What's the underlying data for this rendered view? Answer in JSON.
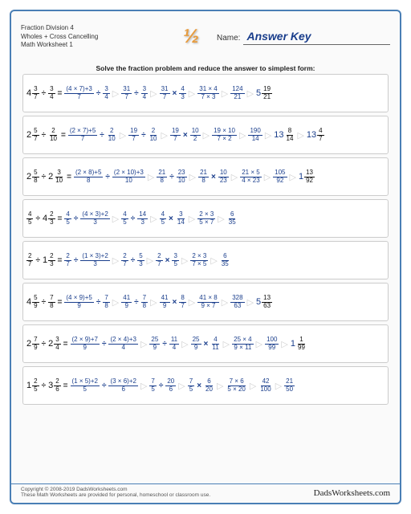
{
  "header": {
    "title1": "Fraction Division 4",
    "title2": "Wholes + Cross Cancelling",
    "title3": "Math Worksheet 1",
    "logo": "½",
    "name_label": "Name:",
    "name_value": "Answer Key"
  },
  "instruction": "Solve the fraction problem and reduce the answer to simplest form:",
  "colors": {
    "border": "#4a7fb5",
    "answer_blue": "#1a3e8c",
    "logo_orange": "#e89b3c",
    "arrow_gray": "#d0d0d0"
  },
  "problems": [
    {
      "lhs": {
        "w": "4",
        "n": "3",
        "d": "7"
      },
      "op": "÷",
      "rhs": {
        "n": "3",
        "d": "4"
      },
      "steps": [
        {
          "n": "(4 × 7)+3",
          "d": "7",
          "op": "÷",
          "n2": "3",
          "d2": "4"
        },
        {
          "n": "31",
          "d": "7",
          "op": "÷",
          "n2": "3",
          "d2": "4"
        },
        {
          "n": "31",
          "d": "7",
          "op": "×",
          "n2": "4",
          "d2": "3"
        },
        {
          "n": "31 × 4",
          "d": "7 × 3"
        },
        {
          "n": "124",
          "d": "21"
        }
      ],
      "result": {
        "w": "5",
        "n": "19",
        "d": "21"
      }
    },
    {
      "lhs": {
        "w": "2",
        "n": "5",
        "d": "7"
      },
      "op": "÷",
      "rhs": {
        "n": "2",
        "d": "10"
      },
      "steps": [
        {
          "n": "(2 × 7)+5",
          "d": "7",
          "op": "÷",
          "n2": "2",
          "d2": "10"
        },
        {
          "n": "19",
          "d": "7",
          "op": "÷",
          "n2": "2",
          "d2": "10"
        },
        {
          "n": "19",
          "d": "7",
          "op": "×",
          "n2": "10",
          "d2": "2"
        },
        {
          "n": "19 × 10",
          "d": "7 × 2"
        },
        {
          "n": "190",
          "d": "14"
        }
      ],
      "result": {
        "w": "13",
        "n": "8",
        "d": "14",
        "simplified": {
          "w": "13",
          "n": "4",
          "d": "7"
        }
      }
    },
    {
      "lhs": {
        "w": "2",
        "n": "5",
        "d": "8"
      },
      "op": "÷",
      "rhs": {
        "w": "2",
        "n": "3",
        "d": "10"
      },
      "steps": [
        {
          "n": "(2 × 8)+5",
          "d": "8",
          "op": "÷",
          "n2": "(2 × 10)+3",
          "d2": "10"
        },
        {
          "n": "21",
          "d": "8",
          "op": "÷",
          "n2": "23",
          "d2": "10"
        },
        {
          "n": "21",
          "d": "8",
          "op": "×",
          "n2": "10",
          "d2": "23"
        },
        {
          "n": "21 × 5",
          "d": "4 × 23"
        },
        {
          "n": "105",
          "d": "92"
        }
      ],
      "result": {
        "w": "1",
        "n": "13",
        "d": "92"
      }
    },
    {
      "lhs": {
        "n": "4",
        "d": "5"
      },
      "op": "÷",
      "rhs": {
        "w": "4",
        "n": "2",
        "d": "3"
      },
      "steps": [
        {
          "n": "4",
          "d": "5",
          "op": "÷",
          "n2": "(4 × 3)+2",
          "d2": "3"
        },
        {
          "n": "4",
          "d": "5",
          "op": "÷",
          "n2": "14",
          "d2": "3"
        },
        {
          "n": "4",
          "d": "5",
          "op": "×",
          "n2": "3",
          "d2": "14"
        },
        {
          "n": "2 × 3",
          "d": "5 × 7"
        },
        {
          "n": "6",
          "d": "35"
        }
      ],
      "result": null
    },
    {
      "lhs": {
        "n": "2",
        "d": "7"
      },
      "op": "÷",
      "rhs": {
        "w": "1",
        "n": "2",
        "d": "3"
      },
      "steps": [
        {
          "n": "2",
          "d": "7",
          "op": "÷",
          "n2": "(1 × 3)+2",
          "d2": "3"
        },
        {
          "n": "2",
          "d": "7",
          "op": "÷",
          "n2": "5",
          "d2": "3"
        },
        {
          "n": "2",
          "d": "7",
          "op": "×",
          "n2": "3",
          "d2": "5"
        },
        {
          "n": "2 × 3",
          "d": "7 × 5"
        },
        {
          "n": "6",
          "d": "35"
        }
      ],
      "result": null
    },
    {
      "lhs": {
        "w": "4",
        "n": "5",
        "d": "9"
      },
      "op": "÷",
      "rhs": {
        "n": "7",
        "d": "8"
      },
      "steps": [
        {
          "n": "(4 × 9)+5",
          "d": "9",
          "op": "÷",
          "n2": "7",
          "d2": "8"
        },
        {
          "n": "41",
          "d": "9",
          "op": "÷",
          "n2": "7",
          "d2": "8"
        },
        {
          "n": "41",
          "d": "9",
          "op": "×",
          "n2": "8",
          "d2": "7"
        },
        {
          "n": "41 × 8",
          "d": "9 × 7"
        },
        {
          "n": "328",
          "d": "63"
        }
      ],
      "result": {
        "w": "5",
        "n": "13",
        "d": "63"
      }
    },
    {
      "lhs": {
        "w": "2",
        "n": "7",
        "d": "9"
      },
      "op": "÷",
      "rhs": {
        "w": "2",
        "n": "3",
        "d": "4"
      },
      "steps": [
        {
          "n": "(2 × 9)+7",
          "d": "9",
          "op": "÷",
          "n2": "(2 × 4)+3",
          "d2": "4"
        },
        {
          "n": "25",
          "d": "9",
          "op": "÷",
          "n2": "11",
          "d2": "4"
        },
        {
          "n": "25",
          "d": "9",
          "op": "×",
          "n2": "4",
          "d2": "11"
        },
        {
          "n": "25 × 4",
          "d": "9 × 11"
        },
        {
          "n": "100",
          "d": "99"
        }
      ],
      "result": {
        "w": "1",
        "n": "1",
        "d": "99"
      }
    },
    {
      "lhs": {
        "w": "1",
        "n": "2",
        "d": "5"
      },
      "op": "÷",
      "rhs": {
        "w": "3",
        "n": "2",
        "d": "6"
      },
      "steps": [
        {
          "n": "(1 × 5)+2",
          "d": "5",
          "op": "÷",
          "n2": "(3 × 6)+2",
          "d2": "6"
        },
        {
          "n": "7",
          "d": "5",
          "op": "÷",
          "n2": "20",
          "d2": "6"
        },
        {
          "n": "7",
          "d": "5",
          "op": "×",
          "n2": "6",
          "d2": "20"
        },
        {
          "n": "7 × 6",
          "d": "5 × 20"
        },
        {
          "n": "42",
          "d": "100"
        },
        {
          "n": "21",
          "d": "50"
        }
      ],
      "result": null
    }
  ],
  "footer": {
    "copyright": "Copyright © 2008-2019 DadsWorksheets.com",
    "subtext": "These Math Worksheets are provided for personal, homeschool or classroom use.",
    "brand": "DadsWorksheets.com"
  }
}
